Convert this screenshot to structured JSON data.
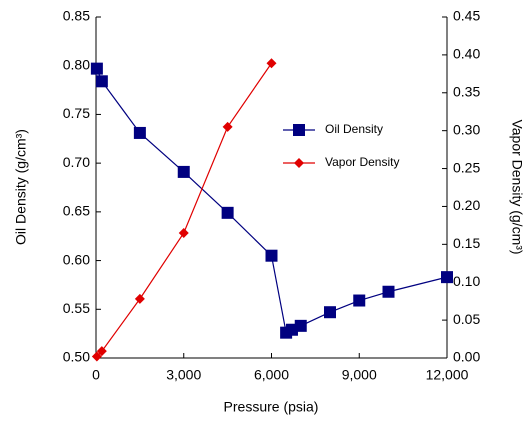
{
  "chart_data": {
    "type": "line",
    "x_label": "Pressure (psia)",
    "y_label": "Oil Density (g/cm³)",
    "y2_label": "Vapor Density (g/cm³)",
    "xlim": [
      0,
      12000
    ],
    "xticks": [
      0,
      {
        "value": 3000,
        "label": "3,000"
      },
      {
        "value": 6000,
        "label": "6,000"
      },
      {
        "value": 9000,
        "label": "9,000"
      },
      {
        "value": 12000,
        "label": "12,000"
      }
    ],
    "ylim": [
      0.5,
      0.85
    ],
    "yticks": [
      {
        "value": 0.5,
        "label": "0.50"
      },
      0.55,
      {
        "value": 0.6,
        "label": "0.60"
      },
      0.65,
      {
        "value": 0.7,
        "label": "0.70"
      },
      0.75,
      {
        "value": 0.8,
        "label": "0.80"
      },
      0.85
    ],
    "y2lim": [
      0,
      0.45
    ],
    "y2ticks": [
      {
        "value": 0,
        "label": "0.00"
      },
      0.05,
      {
        "value": 0.1,
        "label": "0.10"
      },
      0.15,
      {
        "value": 0.2,
        "label": "0.20"
      },
      0.25,
      {
        "value": 0.3,
        "label": "0.30"
      },
      0.35,
      {
        "value": 0.4,
        "label": "0.40"
      },
      0.45
    ],
    "series": [
      {
        "name": "Oil Density",
        "color": "#000080",
        "marker": "square",
        "x": [
          30,
          200,
          1500,
          3000,
          4500,
          6000,
          6500,
          6700,
          7000,
          8000,
          9000,
          10000,
          12000
        ],
        "values": [
          0.797,
          0.784,
          0.731,
          0.691,
          0.649,
          0.605,
          0.526,
          0.529,
          0.533,
          0.547,
          0.559,
          0.568,
          0.583
        ]
      },
      {
        "name": "Vapor Density",
        "color": "#e00000",
        "marker": "diamond",
        "axis": "y2",
        "x": [
          30,
          200,
          1500,
          3000,
          4500,
          6000
        ],
        "values": [
          0.002,
          0.009,
          0.078,
          0.165,
          0.305,
          0.389
        ]
      }
    ]
  }
}
